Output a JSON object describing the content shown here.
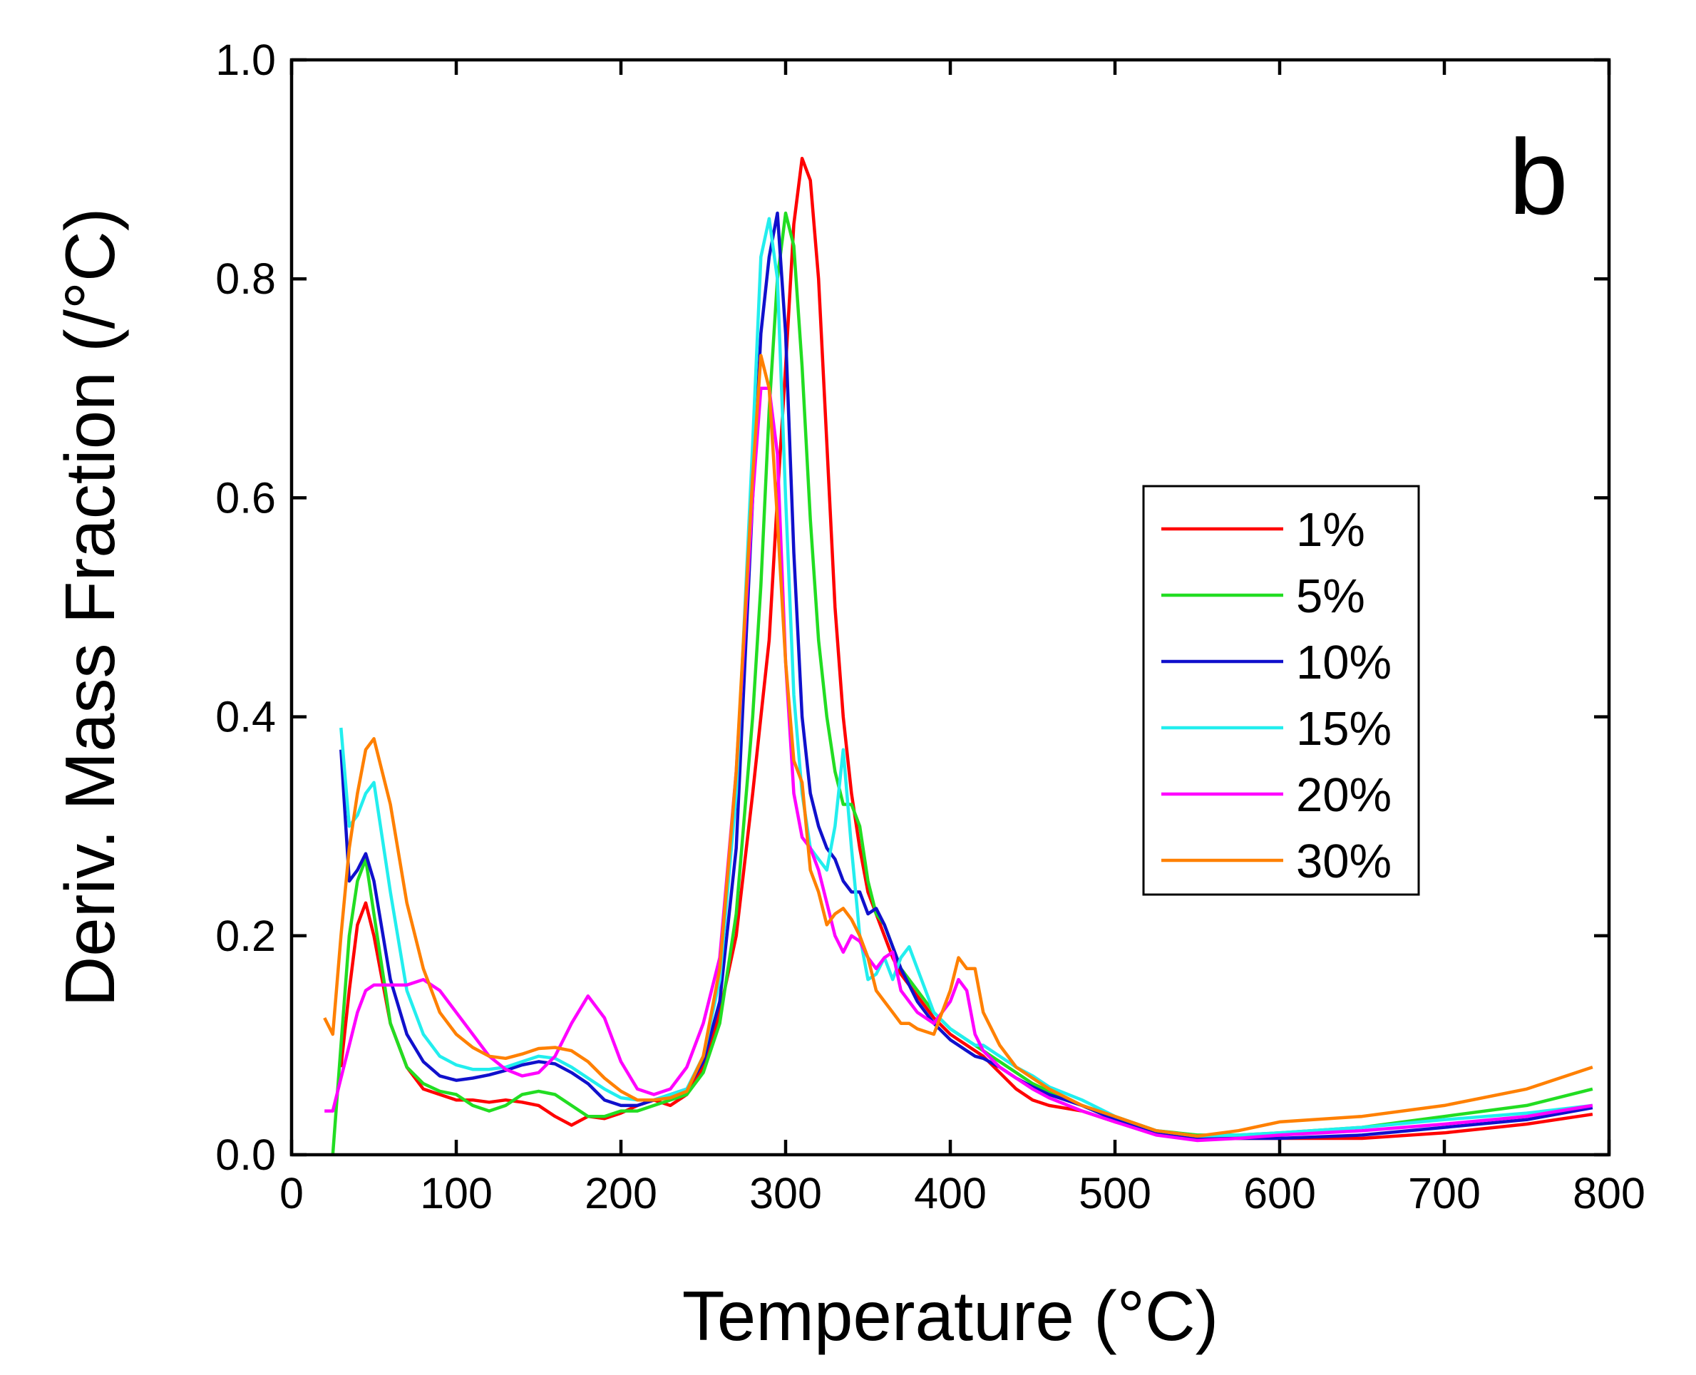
{
  "chart_data": {
    "type": "line",
    "annotation": "b",
    "x_label": "Temperature (°C)",
    "y_label": "Deriv. Mass Fraction (/°C)",
    "xlim": [
      0,
      800
    ],
    "xticks": [
      0,
      100,
      200,
      300,
      400,
      500,
      600,
      700,
      800
    ],
    "ylim": [
      0,
      1.0
    ],
    "yticks": [
      {
        "value": 0,
        "label": "0.0"
      },
      0.2,
      0.4,
      0.6,
      0.8,
      {
        "value": 1.0,
        "label": "1.0"
      }
    ],
    "x": [
      20,
      25,
      30,
      35,
      40,
      45,
      50,
      60,
      70,
      80,
      90,
      100,
      110,
      120,
      130,
      140,
      150,
      160,
      170,
      180,
      190,
      200,
      210,
      220,
      230,
      240,
      250,
      260,
      270,
      280,
      285,
      290,
      295,
      300,
      305,
      310,
      315,
      320,
      325,
      330,
      335,
      340,
      345,
      350,
      355,
      360,
      365,
      370,
      375,
      380,
      390,
      400,
      405,
      410,
      415,
      420,
      430,
      440,
      450,
      460,
      480,
      500,
      525,
      550,
      575,
      600,
      650,
      700,
      750,
      790
    ],
    "series": [
      {
        "name": "1%",
        "color": "#ff0000",
        "values": [
          null,
          null,
          0.08,
          0.15,
          0.21,
          0.23,
          0.2,
          0.12,
          0.08,
          0.06,
          0.055,
          0.05,
          0.05,
          0.048,
          0.05,
          0.048,
          0.045,
          0.035,
          0.027,
          0.035,
          0.033,
          0.038,
          0.045,
          0.05,
          0.045,
          0.055,
          0.08,
          0.13,
          0.2,
          0.33,
          0.4,
          0.47,
          0.6,
          0.72,
          0.85,
          0.91,
          0.89,
          0.8,
          0.65,
          0.5,
          0.4,
          0.33,
          0.28,
          0.24,
          0.22,
          0.2,
          0.18,
          0.165,
          0.155,
          0.145,
          0.125,
          0.11,
          0.105,
          0.1,
          0.095,
          0.09,
          0.075,
          0.06,
          0.05,
          0.045,
          0.04,
          0.03,
          0.02,
          0.015,
          0.015,
          0.015,
          0.015,
          0.02,
          0.028,
          0.037
        ]
      },
      {
        "name": "5%",
        "color": "#22dd22",
        "values": [
          null,
          0,
          0.1,
          0.2,
          0.25,
          0.27,
          0.22,
          0.12,
          0.08,
          0.065,
          0.058,
          0.055,
          0.045,
          0.04,
          0.045,
          0.055,
          0.058,
          0.055,
          0.045,
          0.035,
          0.035,
          0.04,
          0.04,
          0.045,
          0.05,
          0.055,
          0.075,
          0.12,
          0.22,
          0.4,
          0.52,
          0.68,
          0.8,
          0.86,
          0.83,
          0.72,
          0.58,
          0.47,
          0.4,
          0.35,
          0.32,
          0.32,
          0.3,
          0.25,
          0.22,
          0.21,
          0.19,
          0.17,
          0.16,
          0.15,
          0.13,
          0.115,
          0.11,
          0.105,
          0.1,
          0.095,
          0.085,
          0.075,
          0.065,
          0.058,
          0.045,
          0.035,
          0.022,
          0.018,
          0.018,
          0.02,
          0.025,
          0.035,
          0.045,
          0.06
        ]
      },
      {
        "name": "10%",
        "color": "#1010cc",
        "values": [
          null,
          null,
          0.37,
          0.25,
          0.26,
          0.275,
          0.25,
          0.16,
          0.11,
          0.085,
          0.072,
          0.068,
          0.07,
          0.073,
          0.077,
          0.082,
          0.085,
          0.083,
          0.075,
          0.065,
          0.05,
          0.045,
          0.045,
          0.05,
          0.055,
          0.06,
          0.085,
          0.14,
          0.28,
          0.6,
          0.75,
          0.82,
          0.86,
          0.75,
          0.55,
          0.4,
          0.33,
          0.3,
          0.28,
          0.27,
          0.25,
          0.24,
          0.24,
          0.22,
          0.225,
          0.21,
          0.19,
          0.17,
          0.155,
          0.14,
          0.12,
          0.105,
          0.1,
          0.095,
          0.09,
          0.088,
          0.08,
          0.07,
          0.062,
          0.055,
          0.045,
          0.032,
          0.02,
          0.015,
          0.015,
          0.015,
          0.018,
          0.025,
          0.032,
          0.043
        ]
      },
      {
        "name": "15%",
        "color": "#22eeee",
        "values": [
          null,
          null,
          0.39,
          0.3,
          0.31,
          0.33,
          0.34,
          0.24,
          0.15,
          0.11,
          0.09,
          0.082,
          0.078,
          0.078,
          0.08,
          0.085,
          0.09,
          0.088,
          0.08,
          0.07,
          0.06,
          0.052,
          0.05,
          0.05,
          0.055,
          0.06,
          0.09,
          0.16,
          0.33,
          0.65,
          0.82,
          0.855,
          0.8,
          0.6,
          0.42,
          0.33,
          0.28,
          0.27,
          0.26,
          0.3,
          0.37,
          0.28,
          0.2,
          0.16,
          0.165,
          0.18,
          0.16,
          0.18,
          0.19,
          0.17,
          0.13,
          0.115,
          0.11,
          0.105,
          0.1,
          0.1,
          0.09,
          0.08,
          0.072,
          0.062,
          0.05,
          0.035,
          0.022,
          0.017,
          0.018,
          0.02,
          0.025,
          0.032,
          0.038,
          0.045
        ]
      },
      {
        "name": "20%",
        "color": "#ff00ff",
        "values": [
          0.04,
          0.04,
          0.07,
          0.1,
          0.13,
          0.15,
          0.155,
          0.155,
          0.155,
          0.16,
          0.15,
          0.13,
          0.11,
          0.09,
          0.078,
          0.072,
          0.075,
          0.09,
          0.12,
          0.145,
          0.125,
          0.085,
          0.06,
          0.055,
          0.06,
          0.08,
          0.12,
          0.18,
          0.35,
          0.6,
          0.7,
          0.7,
          0.64,
          0.45,
          0.33,
          0.29,
          0.28,
          0.26,
          0.23,
          0.2,
          0.185,
          0.2,
          0.195,
          0.18,
          0.17,
          0.18,
          0.185,
          0.15,
          0.14,
          0.13,
          0.12,
          0.14,
          0.16,
          0.15,
          0.11,
          0.095,
          0.08,
          0.07,
          0.06,
          0.052,
          0.04,
          0.03,
          0.018,
          0.013,
          0.015,
          0.018,
          0.022,
          0.028,
          0.035,
          0.045
        ]
      },
      {
        "name": "30%",
        "color": "#ff8000",
        "values": [
          0.125,
          0.11,
          0.2,
          0.28,
          0.33,
          0.37,
          0.38,
          0.32,
          0.23,
          0.17,
          0.13,
          0.11,
          0.098,
          0.09,
          0.088,
          0.092,
          0.097,
          0.098,
          0.095,
          0.085,
          0.07,
          0.058,
          0.05,
          0.05,
          0.052,
          0.058,
          0.09,
          0.17,
          0.35,
          0.62,
          0.73,
          0.7,
          0.58,
          0.45,
          0.36,
          0.34,
          0.26,
          0.24,
          0.21,
          0.22,
          0.225,
          0.215,
          0.2,
          0.18,
          0.15,
          0.14,
          0.13,
          0.12,
          0.12,
          0.115,
          0.11,
          0.15,
          0.18,
          0.17,
          0.17,
          0.13,
          0.1,
          0.08,
          0.07,
          0.06,
          0.045,
          0.035,
          0.022,
          0.017,
          0.022,
          0.03,
          0.035,
          0.045,
          0.06,
          0.08
        ]
      }
    ]
  }
}
